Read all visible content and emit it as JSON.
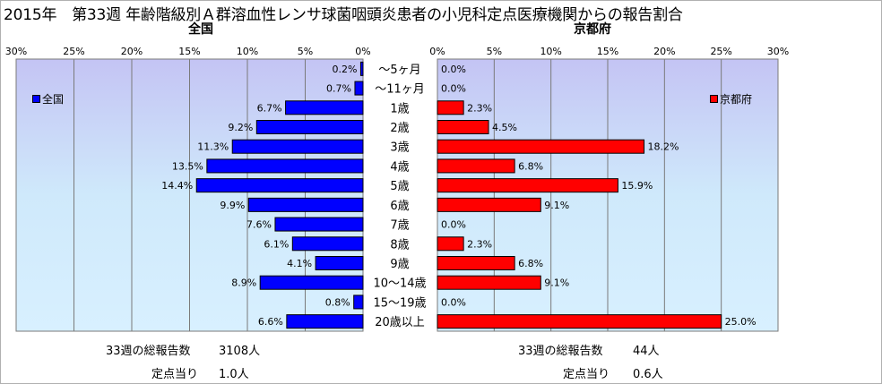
{
  "title": "2015年　第33週 年齢階級別Ａ群溶血性レンサ球菌咽頭炎患者の小児科定点医療機関からの報告割合",
  "chart_data": [
    {
      "type": "bar",
      "title": "全国",
      "orientation": "horizontal",
      "x_reversed": true,
      "xlim": [
        0,
        30
      ],
      "ticks": [
        "0%",
        "5%",
        "10%",
        "15%",
        "20%",
        "25%",
        "30%"
      ],
      "categories": [
        "～5ヶ月",
        "～11ヶ月",
        "1歳",
        "2歳",
        "3歳",
        "4歳",
        "5歳",
        "6歳",
        "7歳",
        "8歳",
        "9歳",
        "10～14歳",
        "15～19歳",
        "20歳以上"
      ],
      "series": [
        {
          "name": "全国",
          "color": "#0000ff",
          "values": [
            0.2,
            0.7,
            6.7,
            9.2,
            11.3,
            13.5,
            14.4,
            9.9,
            7.6,
            6.1,
            4.1,
            8.9,
            0.8,
            6.6
          ],
          "labels": [
            "0.2%",
            "0.7%",
            "6.7%",
            "9.2%",
            "11.3%",
            "13.5%",
            "14.4%",
            "9.9%",
            "7.6%",
            "6.1%",
            "4.1%",
            "8.9%",
            "0.8%",
            "6.6%"
          ]
        }
      ],
      "legend": "top-left",
      "grid": true
    },
    {
      "type": "bar",
      "title": "京都府",
      "orientation": "horizontal",
      "xlim": [
        0,
        30
      ],
      "ticks": [
        "0%",
        "5%",
        "10%",
        "15%",
        "20%",
        "25%",
        "30%"
      ],
      "categories": [
        "～5ヶ月",
        "～11ヶ月",
        "1歳",
        "2歳",
        "3歳",
        "4歳",
        "5歳",
        "6歳",
        "7歳",
        "8歳",
        "9歳",
        "10～14歳",
        "15～19歳",
        "20歳以上"
      ],
      "series": [
        {
          "name": "京都府",
          "color": "#ff0000",
          "values": [
            0.0,
            0.0,
            2.3,
            4.5,
            18.2,
            6.8,
            15.9,
            9.1,
            0.0,
            2.3,
            6.8,
            9.1,
            0.0,
            25.0
          ],
          "labels": [
            "0.0%",
            "0.0%",
            "2.3%",
            "4.5%",
            "18.2%",
            "6.8%",
            "15.9%",
            "9.1%",
            "0.0%",
            "2.3%",
            "6.8%",
            "9.1%",
            "0.0%",
            "25.0%"
          ]
        }
      ],
      "legend": "top-right",
      "grid": true
    }
  ],
  "stats": {
    "national_total_label": "33週の総報告数",
    "national_total_value": "3108人",
    "national_per_label": "定点当り",
    "national_per_value": "1.0人",
    "kyoto_total_label": "33週の総報告数",
    "kyoto_total_value": "44人",
    "kyoto_per_label": "定点当り",
    "kyoto_per_value": "0.6人"
  }
}
